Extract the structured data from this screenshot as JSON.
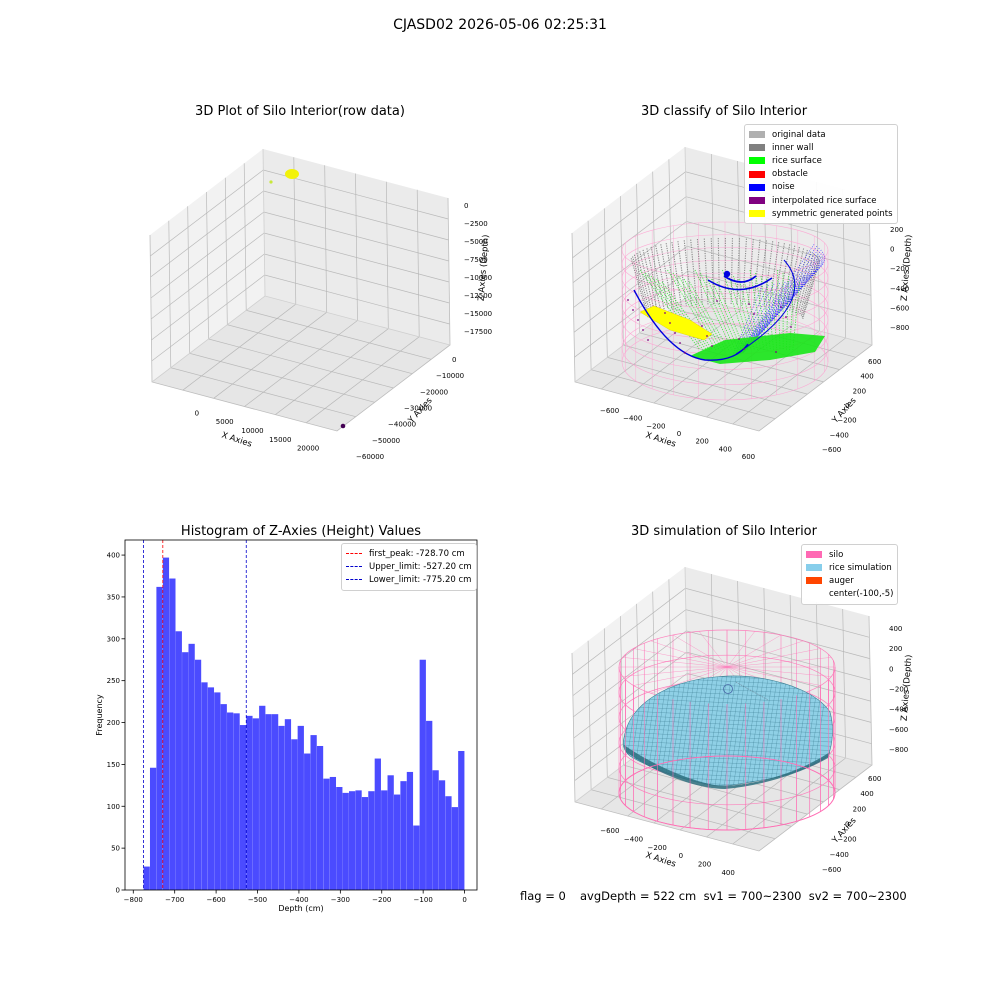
{
  "suptitle": "CJASD02 2026-05-06 02:25:31",
  "panel_raw": {
    "title": "3D Plot of Silo Interior(row data)",
    "xlabel": "X Axies",
    "ylabel": "Y Axies",
    "zlabel": "Z Axies (Depth)",
    "x_ticks": [
      "0",
      "5000",
      "10000",
      "15000",
      "20000"
    ],
    "y_ticks": [
      "0",
      "−10000",
      "−20000",
      "−30000",
      "−40000",
      "−50000",
      "−60000"
    ],
    "z_ticks": [
      "0",
      "−2500",
      "−5000",
      "−7500",
      "−10000",
      "−12500",
      "−15000",
      "−17500"
    ]
  },
  "panel_classify": {
    "title": "3D classify of Silo Interior",
    "xlabel": "X Axies",
    "ylabel": "Y Axies",
    "zlabel": "Z Axies (Depth)",
    "x_ticks": [
      "−600",
      "−400",
      "−200",
      "0",
      "200",
      "400",
      "600"
    ],
    "y_ticks": [
      "600",
      "400",
      "200",
      "0",
      "−200",
      "−400",
      "−600"
    ],
    "z_ticks": [
      "200",
      "0",
      "−200",
      "−400",
      "−600",
      "−800"
    ],
    "legend": [
      {
        "label": "original data",
        "color": "#b0b0b0"
      },
      {
        "label": "inner wall",
        "color": "#808080"
      },
      {
        "label": "rice surface",
        "color": "#00ff00"
      },
      {
        "label": "obstacle",
        "color": "#ff0000"
      },
      {
        "label": "noise",
        "color": "#0000ff"
      },
      {
        "label": "interpolated rice surface",
        "color": "#800080"
      },
      {
        "label": "symmetric generated points",
        "color": "#ffff00"
      }
    ]
  },
  "panel_sim": {
    "title": "3D simulation of Silo Interior",
    "xlabel": "X Axies",
    "ylabel": "Y Axies",
    "zlabel": "Z Axies (Depth)",
    "x_ticks": [
      "−600",
      "−400",
      "−200",
      "0",
      "200",
      "400"
    ],
    "y_ticks": [
      "600",
      "400",
      "200",
      "0",
      "−200",
      "−400",
      "−600"
    ],
    "z_ticks": [
      "400",
      "200",
      "0",
      "−200",
      "−400",
      "−600",
      "−800"
    ],
    "legend": [
      {
        "label": "silo",
        "color": "#ff69b4"
      },
      {
        "label": "rice simulation",
        "color": "#87ceeb"
      },
      {
        "label": "auger",
        "color": "#ff4500"
      },
      {
        "label": "center(-100,-5)",
        "color": ""
      }
    ]
  },
  "footer": {
    "flag": "flag = 0",
    "stats": "avgDepth = 522 cm  sv1 = 700~2300  sv2 = 700~2300"
  },
  "chart_data": {
    "type": "bar",
    "title": "Histogram of Z-Axies (Height) Values",
    "xlabel": "Depth (cm)",
    "ylabel": "Frequency",
    "xlim": [
      -820,
      30
    ],
    "ylim": [
      0,
      418
    ],
    "x_ticks": [
      -800,
      -700,
      -600,
      -500,
      -400,
      -300,
      -200,
      -100,
      0
    ],
    "y_ticks": [
      0,
      50,
      100,
      150,
      200,
      250,
      300,
      350,
      400
    ],
    "bar_color": "#4b4bff",
    "bin_start": -775.2,
    "bin_end": 0,
    "values": [
      28,
      146,
      362,
      397,
      372,
      309,
      284,
      294,
      275,
      248,
      242,
      236,
      222,
      212,
      211,
      197,
      208,
      205,
      220,
      210,
      210,
      196,
      204,
      180,
      196,
      163,
      185,
      172,
      133,
      135,
      123,
      116,
      118,
      119,
      111,
      118,
      157,
      119,
      137,
      114,
      130,
      141,
      77,
      275,
      202,
      143,
      131,
      112,
      99,
      166
    ],
    "vlines": [
      {
        "label": "first_peak: -728.70 cm",
        "x": -728.7,
        "color": "#ff0000"
      },
      {
        "label": "Upper_limit: -527.20 cm",
        "x": -527.2,
        "color": "#0000cc"
      },
      {
        "label": "Lower_limit: -775.20 cm",
        "x": -775.2,
        "color": "#0000cc"
      }
    ]
  }
}
